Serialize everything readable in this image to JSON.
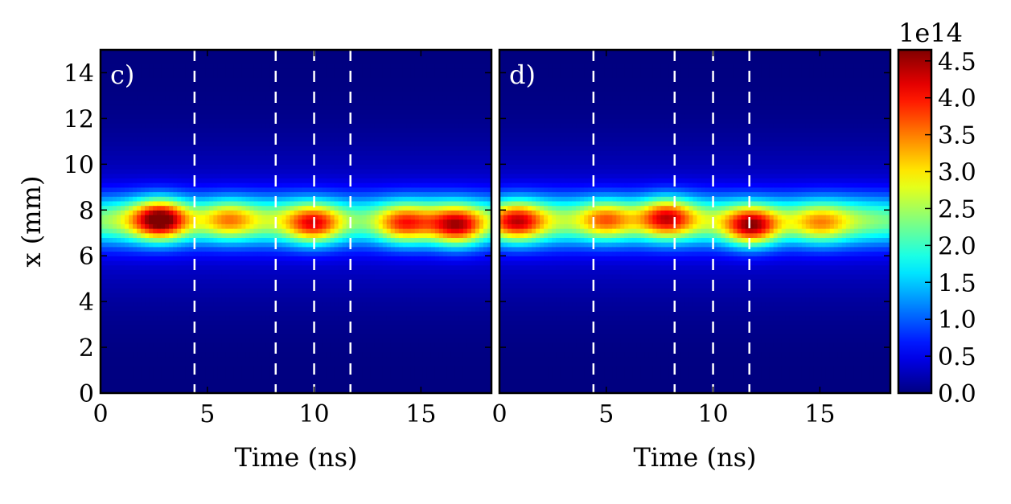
{
  "chart_data": [
    {
      "type": "heatmap",
      "panel_label": "c)",
      "xlabel": "Time (ns)",
      "ylabel": "x (mm)",
      "xlim": [
        0,
        18.3
      ],
      "ylim": [
        0,
        15
      ],
      "xticks": [
        0,
        5,
        10,
        15
      ],
      "xtick_labels": [
        "0",
        "5",
        "10",
        "15"
      ],
      "yticks": [
        0,
        2,
        4,
        6,
        8,
        10,
        12,
        14
      ],
      "ytick_labels": [
        "0",
        "2",
        "4",
        "6",
        "8",
        "10",
        "12",
        "14"
      ],
      "dashed_lines_x": [
        4.4,
        8.2,
        10.0,
        11.7
      ],
      "hot_spots": [
        {
          "t": 2.8,
          "x": 7.6,
          "value": 4.6
        },
        {
          "t": 6.0,
          "x": 7.6,
          "value": 3.3
        },
        {
          "t": 10.0,
          "x": 7.4,
          "value": 3.8
        },
        {
          "t": 14.2,
          "x": 7.4,
          "value": 3.6
        },
        {
          "t": 16.7,
          "x": 7.3,
          "value": 4.1
        }
      ]
    },
    {
      "type": "heatmap",
      "panel_label": "d)",
      "xlabel": "Time (ns)",
      "ylabel": "",
      "xlim": [
        0,
        18.3
      ],
      "ylim": [
        0,
        15
      ],
      "xticks": [
        0,
        5,
        10,
        15
      ],
      "xtick_labels": [
        "0",
        "5",
        "10",
        "15"
      ],
      "dashed_lines_x": [
        4.4,
        8.2,
        10.0,
        11.7
      ],
      "hot_spots": [
        {
          "t": 0.8,
          "x": 7.5,
          "value": 3.9
        },
        {
          "t": 5.0,
          "x": 7.6,
          "value": 3.5
        },
        {
          "t": 7.8,
          "x": 7.7,
          "value": 3.9
        },
        {
          "t": 11.8,
          "x": 7.3,
          "value": 4.5
        },
        {
          "t": 15.0,
          "x": 7.4,
          "value": 3.0
        }
      ]
    }
  ],
  "colorbar": {
    "exponent_label": "1e14",
    "range": [
      0.0,
      4.65
    ],
    "ticks": [
      0.0,
      0.5,
      1.0,
      1.5,
      2.0,
      2.5,
      3.0,
      3.5,
      4.0,
      4.5
    ],
    "tick_labels": [
      "0.0",
      "0.5",
      "1.0",
      "1.5",
      "2.0",
      "2.5",
      "3.0",
      "3.5",
      "4.0",
      "4.5"
    ],
    "colormap": "jet"
  },
  "colors": {
    "jet_low": "#00007f",
    "jet_high": "#7f0000",
    "dashed_line": "#ffffff"
  }
}
